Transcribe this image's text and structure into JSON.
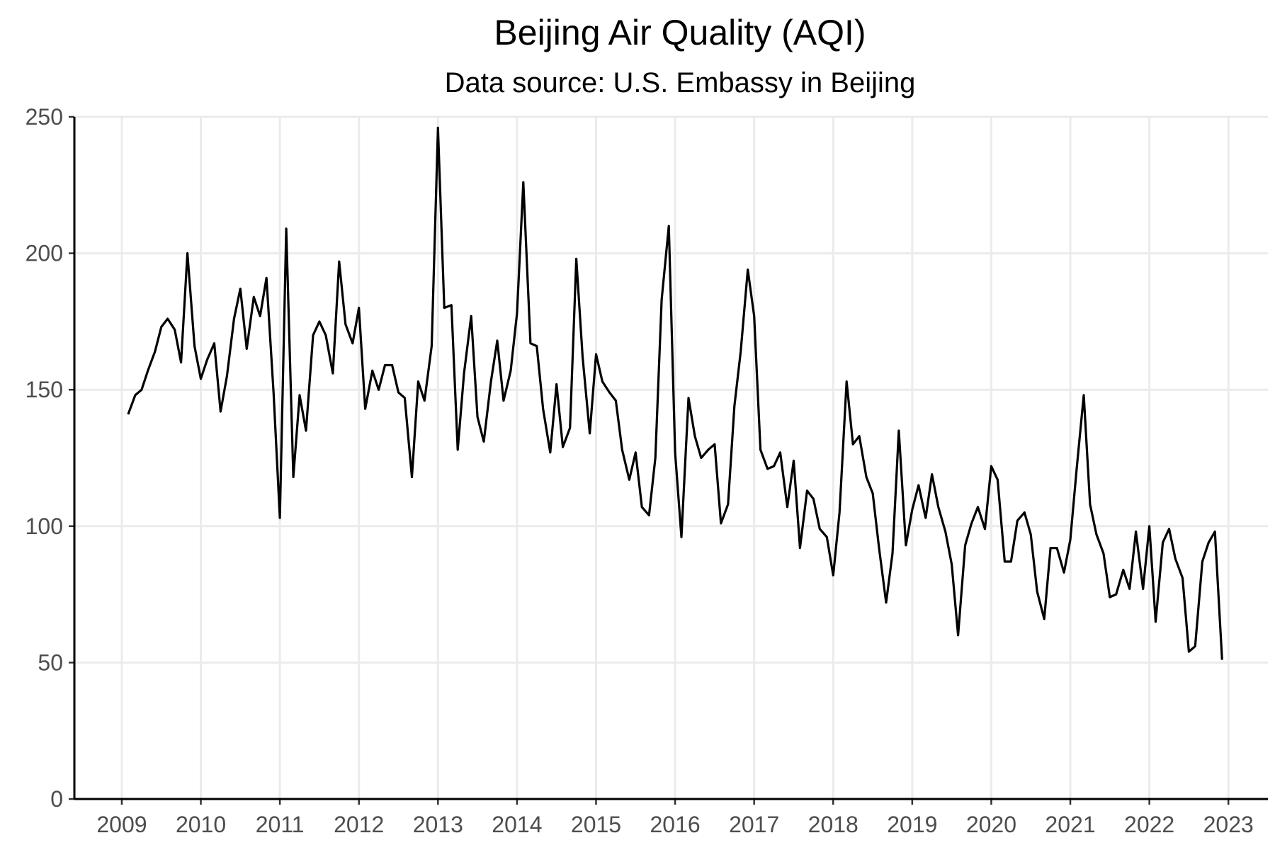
{
  "chart_data": {
    "type": "line",
    "title": "Beijing Air Quality (AQI)",
    "subtitle": "Data source: U.S. Embassy in Beijing",
    "xlabel": "",
    "ylabel": "",
    "xlim": [
      2008.4,
      2023.5
    ],
    "ylim": [
      0,
      250
    ],
    "x_ticks": [
      2009,
      2010,
      2011,
      2012,
      2013,
      2014,
      2015,
      2016,
      2017,
      2018,
      2019,
      2020,
      2021,
      2022,
      2023
    ],
    "y_ticks": [
      0,
      50,
      100,
      150,
      200,
      250
    ],
    "grid": true,
    "legend": "none",
    "series": [
      {
        "color": "#000000",
        "points": [
          [
            2009.08,
            141
          ],
          [
            2009.17,
            148
          ],
          [
            2009.25,
            150
          ],
          [
            2009.33,
            157
          ],
          [
            2009.42,
            164
          ],
          [
            2009.5,
            173
          ],
          [
            2009.58,
            176
          ],
          [
            2009.67,
            172
          ],
          [
            2009.75,
            160
          ],
          [
            2009.83,
            200
          ],
          [
            2009.92,
            166
          ],
          [
            2010.0,
            154
          ],
          [
            2010.08,
            161
          ],
          [
            2010.17,
            167
          ],
          [
            2010.25,
            142
          ],
          [
            2010.33,
            155
          ],
          [
            2010.42,
            176
          ],
          [
            2010.5,
            187
          ],
          [
            2010.58,
            165
          ],
          [
            2010.67,
            184
          ],
          [
            2010.75,
            177
          ],
          [
            2010.83,
            191
          ],
          [
            2010.92,
            149
          ],
          [
            2011.0,
            103
          ],
          [
            2011.08,
            209
          ],
          [
            2011.17,
            118
          ],
          [
            2011.25,
            148
          ],
          [
            2011.33,
            135
          ],
          [
            2011.42,
            170
          ],
          [
            2011.5,
            175
          ],
          [
            2011.58,
            170
          ],
          [
            2011.67,
            156
          ],
          [
            2011.75,
            197
          ],
          [
            2011.83,
            174
          ],
          [
            2011.92,
            167
          ],
          [
            2012.0,
            180
          ],
          [
            2012.08,
            143
          ],
          [
            2012.17,
            157
          ],
          [
            2012.25,
            150
          ],
          [
            2012.33,
            159
          ],
          [
            2012.42,
            159
          ],
          [
            2012.5,
            149
          ],
          [
            2012.58,
            147
          ],
          [
            2012.67,
            118
          ],
          [
            2012.75,
            153
          ],
          [
            2012.83,
            146
          ],
          [
            2012.92,
            166
          ],
          [
            2013.0,
            246
          ],
          [
            2013.08,
            180
          ],
          [
            2013.17,
            181
          ],
          [
            2013.25,
            128
          ],
          [
            2013.33,
            156
          ],
          [
            2013.42,
            177
          ],
          [
            2013.5,
            140
          ],
          [
            2013.58,
            131
          ],
          [
            2013.67,
            153
          ],
          [
            2013.75,
            168
          ],
          [
            2013.83,
            146
          ],
          [
            2013.92,
            157
          ],
          [
            2014.0,
            178
          ],
          [
            2014.08,
            226
          ],
          [
            2014.17,
            167
          ],
          [
            2014.25,
            166
          ],
          [
            2014.33,
            143
          ],
          [
            2014.42,
            127
          ],
          [
            2014.5,
            152
          ],
          [
            2014.58,
            129
          ],
          [
            2014.67,
            136
          ],
          [
            2014.75,
            198
          ],
          [
            2014.83,
            162
          ],
          [
            2014.92,
            134
          ],
          [
            2015.0,
            163
          ],
          [
            2015.08,
            153
          ],
          [
            2015.17,
            149
          ],
          [
            2015.25,
            146
          ],
          [
            2015.33,
            128
          ],
          [
            2015.42,
            117
          ],
          [
            2015.5,
            127
          ],
          [
            2015.58,
            107
          ],
          [
            2015.67,
            104
          ],
          [
            2015.75,
            125
          ],
          [
            2015.83,
            183
          ],
          [
            2015.92,
            210
          ],
          [
            2016.0,
            127
          ],
          [
            2016.08,
            96
          ],
          [
            2016.17,
            147
          ],
          [
            2016.25,
            133
          ],
          [
            2016.33,
            125
          ],
          [
            2016.42,
            128
          ],
          [
            2016.5,
            130
          ],
          [
            2016.58,
            101
          ],
          [
            2016.67,
            108
          ],
          [
            2016.75,
            144
          ],
          [
            2016.83,
            164
          ],
          [
            2016.92,
            194
          ],
          [
            2017.0,
            177
          ],
          [
            2017.08,
            128
          ],
          [
            2017.17,
            121
          ],
          [
            2017.25,
            122
          ],
          [
            2017.33,
            127
          ],
          [
            2017.42,
            107
          ],
          [
            2017.5,
            124
          ],
          [
            2017.58,
            92
          ],
          [
            2017.67,
            113
          ],
          [
            2017.75,
            110
          ],
          [
            2017.83,
            99
          ],
          [
            2017.92,
            96
          ],
          [
            2018.0,
            82
          ],
          [
            2018.08,
            105
          ],
          [
            2018.17,
            153
          ],
          [
            2018.25,
            130
          ],
          [
            2018.33,
            133
          ],
          [
            2018.42,
            118
          ],
          [
            2018.5,
            112
          ],
          [
            2018.58,
            92
          ],
          [
            2018.67,
            72
          ],
          [
            2018.75,
            90
          ],
          [
            2018.83,
            135
          ],
          [
            2018.92,
            93
          ],
          [
            2019.0,
            106
          ],
          [
            2019.08,
            115
          ],
          [
            2019.17,
            103
          ],
          [
            2019.25,
            119
          ],
          [
            2019.33,
            107
          ],
          [
            2019.42,
            98
          ],
          [
            2019.5,
            86
          ],
          [
            2019.58,
            60
          ],
          [
            2019.67,
            93
          ],
          [
            2019.75,
            101
          ],
          [
            2019.83,
            107
          ],
          [
            2019.92,
            99
          ],
          [
            2020.0,
            122
          ],
          [
            2020.08,
            117
          ],
          [
            2020.17,
            87
          ],
          [
            2020.25,
            87
          ],
          [
            2020.33,
            102
          ],
          [
            2020.42,
            105
          ],
          [
            2020.5,
            97
          ],
          [
            2020.58,
            76
          ],
          [
            2020.67,
            66
          ],
          [
            2020.75,
            92
          ],
          [
            2020.83,
            92
          ],
          [
            2020.92,
            83
          ],
          [
            2021.0,
            95
          ],
          [
            2021.08,
            121
          ],
          [
            2021.17,
            148
          ],
          [
            2021.25,
            108
          ],
          [
            2021.33,
            97
          ],
          [
            2021.42,
            90
          ],
          [
            2021.5,
            74
          ],
          [
            2021.58,
            75
          ],
          [
            2021.67,
            84
          ],
          [
            2021.75,
            77
          ],
          [
            2021.83,
            98
          ],
          [
            2021.92,
            77
          ],
          [
            2022.0,
            100
          ],
          [
            2022.08,
            65
          ],
          [
            2022.17,
            94
          ],
          [
            2022.25,
            99
          ],
          [
            2022.33,
            88
          ],
          [
            2022.42,
            81
          ],
          [
            2022.5,
            54
          ],
          [
            2022.58,
            56
          ],
          [
            2022.67,
            87
          ],
          [
            2022.75,
            94
          ],
          [
            2022.83,
            98
          ],
          [
            2022.92,
            51
          ]
        ]
      }
    ]
  }
}
